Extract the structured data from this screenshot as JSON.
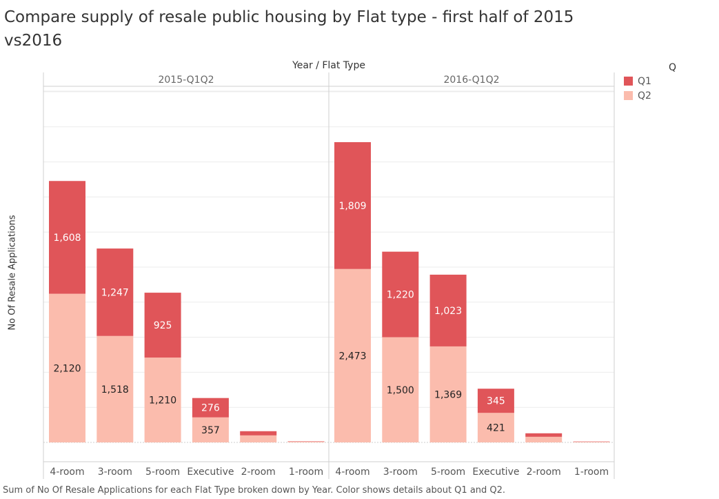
{
  "title": "Compare supply of resale public housing by Flat type -  first half of 2015 vs2016",
  "axis_header": "Year  /  Flat Type",
  "ylabel": "No Of Resale Applications",
  "legend": {
    "title": "Q",
    "items": [
      {
        "label": "Q1",
        "color": "#e05559"
      },
      {
        "label": "Q2",
        "color": "#fbbcad"
      }
    ]
  },
  "footer": "Sum of No Of Resale Applications for each Flat Type broken down by Year.  Color shows details about Q1 and Q2.",
  "chart_data": {
    "type": "bar",
    "stacked": true,
    "panels": [
      {
        "name": "2015-Q1Q2",
        "categories": [
          "4-room",
          "3-room",
          "5-room",
          "Executive",
          "2-room",
          "1-room"
        ],
        "series": [
          {
            "name": "Q2",
            "values": [
              2120,
              1518,
              1210,
              357,
              100,
              10
            ]
          },
          {
            "name": "Q1",
            "values": [
              1608,
              1247,
              925,
              276,
              60,
              5
            ]
          }
        ]
      },
      {
        "name": "2016-Q1Q2",
        "categories": [
          "4-room",
          "3-room",
          "5-room",
          "Executive",
          "2-room",
          "1-room"
        ],
        "series": [
          {
            "name": "Q2",
            "values": [
              2473,
              1500,
              1369,
              421,
              80,
              8
            ]
          },
          {
            "name": "Q1",
            "values": [
              1809,
              1220,
              1023,
              345,
              50,
              5
            ]
          }
        ]
      }
    ],
    "labeled_points": {
      "2015-Q1Q2": {
        "Q2": [
          2120,
          1518,
          1210,
          357
        ],
        "Q1": [
          1608,
          1247,
          925,
          276
        ]
      },
      "2016-Q1Q2": {
        "Q2": [
          2473,
          1500,
          1369,
          421
        ],
        "Q1": [
          1809,
          1220,
          1023,
          345
        ]
      }
    },
    "ylim": [
      0,
      5000
    ],
    "grid": true,
    "legend_position": "top-right",
    "colors": {
      "Q1": "#e05559",
      "Q2": "#fbbcad"
    }
  }
}
